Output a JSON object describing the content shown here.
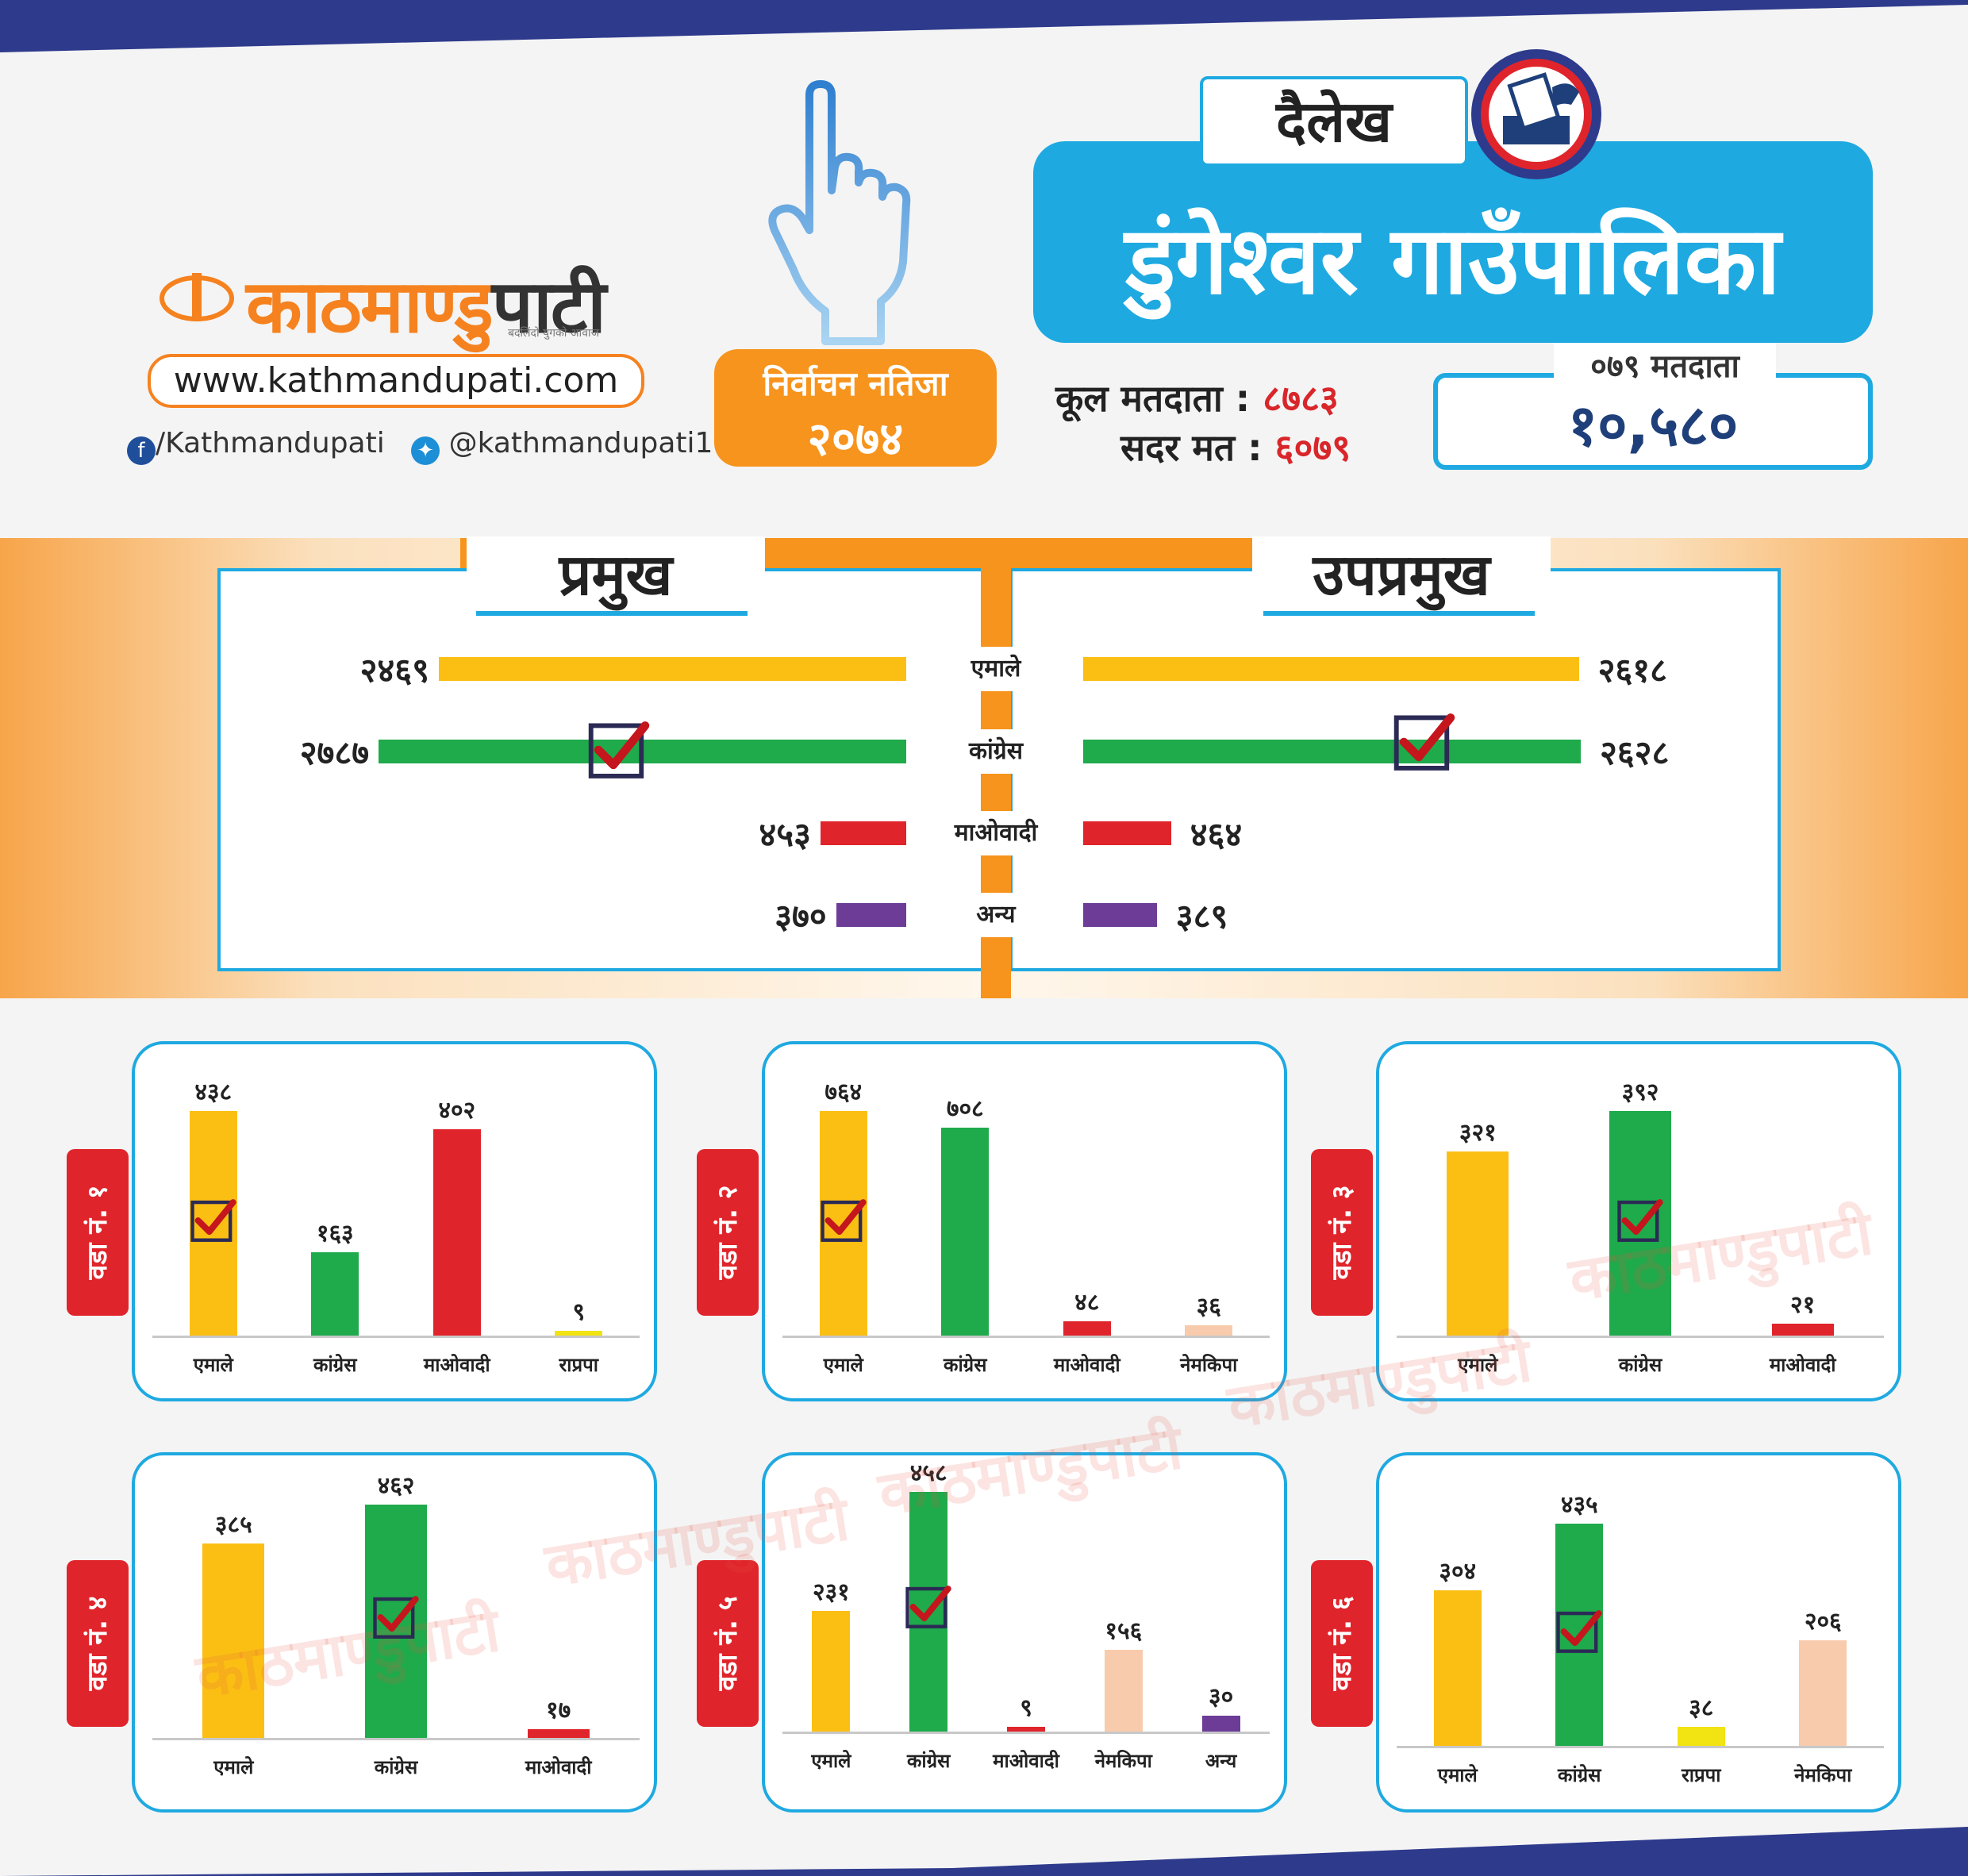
{
  "logo": {
    "name_part1": "काठमाण्डु",
    "name_part2": "पाटी",
    "tagline": "बदलिंदो युगको आवाज"
  },
  "website": "www.kathmandupati.com",
  "social": {
    "facebook": "/Kathmandupati",
    "twitter": "@kathmandupati1"
  },
  "result_badge": {
    "line1": "निर्वाचन नतिजा",
    "line2": "२०७४"
  },
  "district": "दैलेख",
  "municipality": "डुंगेश्वर गाउँपालिका",
  "stats": {
    "total_label": "कूल मतदाता",
    "total_value": "८७८३",
    "valid_label": "सदर मत",
    "valid_value": "६०७९",
    "separator": ":"
  },
  "voters_box": {
    "label": "०७९ मतदाता",
    "value": "१०,५८०"
  },
  "colors": {
    "uml": "#fbbf14",
    "congress": "#1faa4b",
    "maoist": "#e0242b",
    "other": "#6c3c97",
    "rpp": "#f2e313",
    "nemkipa": "#f7cbab",
    "accent_blue": "#1fa9e1",
    "accent_orange": "#f7941d",
    "stripe": "#2e3a8c"
  },
  "icons": {
    "hand": "voting-finger-icon",
    "ballot": "ballot-box-icon",
    "check": "checkmark-icon",
    "logo": "kathmandupati-logo-icon"
  },
  "chart_data": [
    {
      "type": "bar",
      "orientation": "horizontal",
      "title": "प्रमुख",
      "categories": [
        "एमाले",
        "कांग्रेस",
        "माओवादी",
        "अन्य"
      ],
      "values": [
        2469,
        2787,
        453,
        370
      ],
      "labels": [
        "२४६९",
        "२७८७",
        "४५३",
        "३७०"
      ],
      "colors": [
        "#fbbf14",
        "#1faa4b",
        "#e0242b",
        "#6c3c97"
      ],
      "winner": "कांग्रेस"
    },
    {
      "type": "bar",
      "orientation": "horizontal",
      "title": "उपप्रमुख",
      "categories": [
        "एमाले",
        "कांग्रेस",
        "माओवादी",
        "अन्य"
      ],
      "values": [
        2618,
        2628,
        464,
        389
      ],
      "labels": [
        "२६१८",
        "२६२८",
        "४६४",
        "३८९"
      ],
      "colors": [
        "#fbbf14",
        "#1faa4b",
        "#e0242b",
        "#6c3c97"
      ],
      "winner": "कांग्रेस"
    },
    {
      "type": "bar",
      "title": "वडा नं. १",
      "categories": [
        "एमाले",
        "कांग्रेस",
        "माओवादी",
        "राप्रपा"
      ],
      "values": [
        438,
        163,
        402,
        9
      ],
      "labels": [
        "४३८",
        "१६३",
        "४०२",
        "९"
      ],
      "colors": [
        "#fbbf14",
        "#1faa4b",
        "#e0242b",
        "#f2e313"
      ],
      "winner": "एमाले"
    },
    {
      "type": "bar",
      "title": "वडा नं. २",
      "categories": [
        "एमाले",
        "कांग्रेस",
        "माओवादी",
        "नेमकिपा"
      ],
      "values": [
        764,
        708,
        48,
        36
      ],
      "labels": [
        "७६४",
        "७०८",
        "४८",
        "३६"
      ],
      "colors": [
        "#fbbf14",
        "#1faa4b",
        "#e0242b",
        "#f7cbab"
      ],
      "winner": "एमाले"
    },
    {
      "type": "bar",
      "title": "वडा नं. ३",
      "categories": [
        "एमाले",
        "कांग्रेस",
        "माओवादी"
      ],
      "values": [
        321,
        392,
        21
      ],
      "labels": [
        "३२१",
        "३९२",
        "२१"
      ],
      "colors": [
        "#fbbf14",
        "#1faa4b",
        "#e0242b"
      ],
      "winner": "कांग्रेस"
    },
    {
      "type": "bar",
      "title": "वडा नं. ४",
      "categories": [
        "एमाले",
        "कांग्रेस",
        "माओवादी"
      ],
      "values": [
        385,
        462,
        17
      ],
      "labels": [
        "३८५",
        "४६२",
        "१७"
      ],
      "colors": [
        "#fbbf14",
        "#1faa4b",
        "#e0242b"
      ],
      "winner": "कांग्रेस"
    },
    {
      "type": "bar",
      "title": "वडा नं. ५",
      "categories": [
        "एमाले",
        "कांग्रेस",
        "माओवादी",
        "नेमकिपा",
        "अन्य"
      ],
      "values": [
        231,
        458,
        9,
        156,
        30
      ],
      "labels": [
        "२३१",
        "४५८",
        "९",
        "१५६",
        "३०"
      ],
      "colors": [
        "#fbbf14",
        "#1faa4b",
        "#e0242b",
        "#f7cbab",
        "#6c3c97"
      ],
      "winner": "कांग्रेस"
    },
    {
      "type": "bar",
      "title": "वडा नं. ६",
      "categories": [
        "एमाले",
        "कांग्रेस",
        "राप्रपा",
        "नेमकिपा"
      ],
      "values": [
        304,
        435,
        38,
        206
      ],
      "labels": [
        "३०४",
        "४३५",
        "३८",
        "२०६"
      ],
      "colors": [
        "#fbbf14",
        "#1faa4b",
        "#f2e313",
        "#f7cbab"
      ],
      "winner": "कांग्रेस"
    }
  ]
}
